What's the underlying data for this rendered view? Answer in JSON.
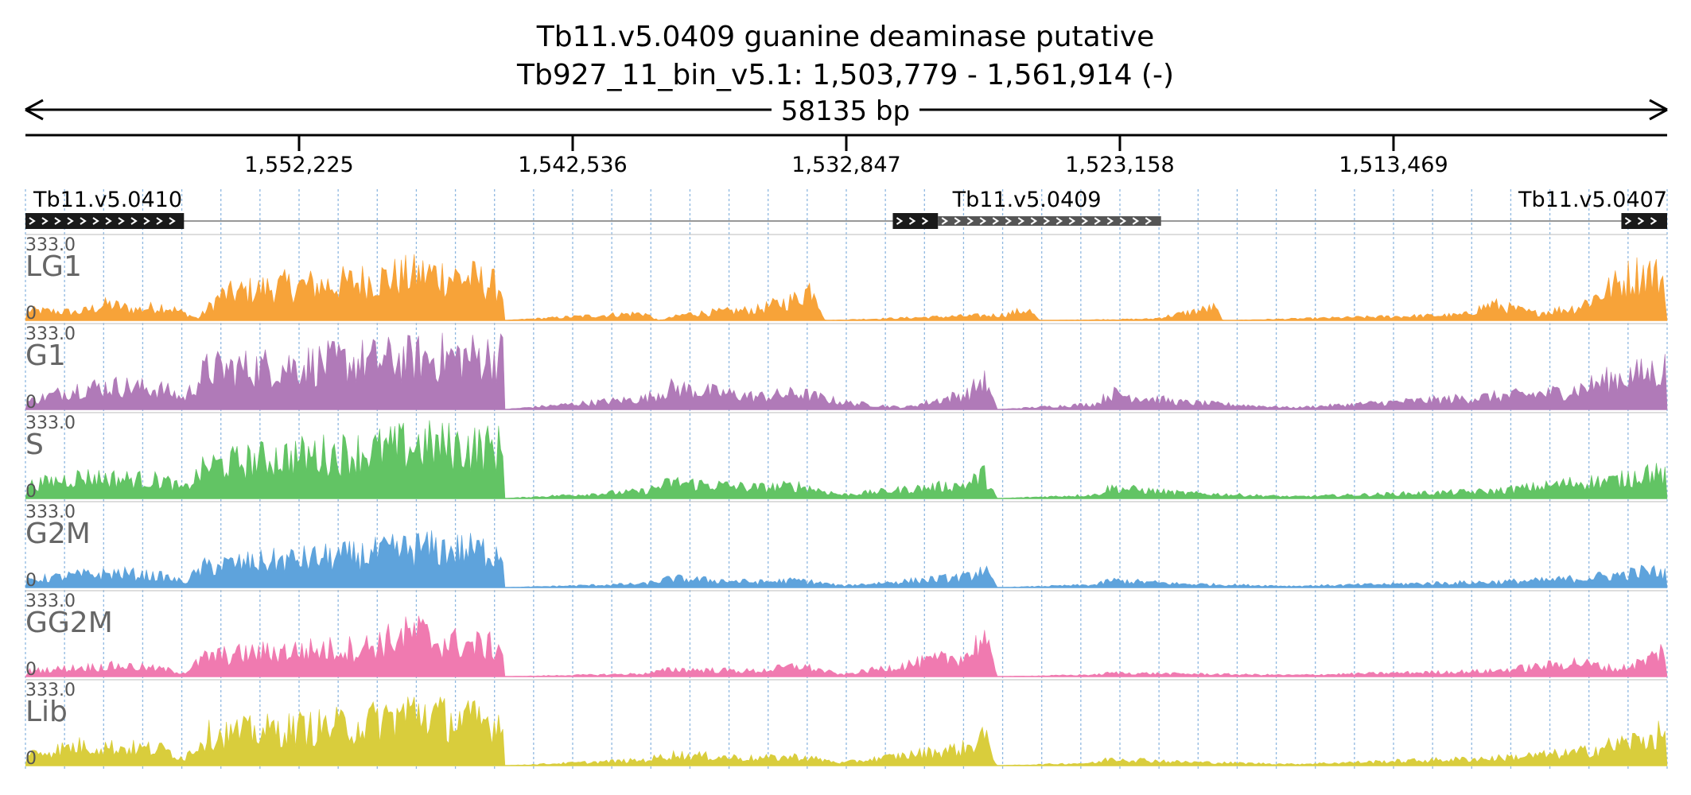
{
  "title": "Tb11.v5.0409  guanine deaminase  putative",
  "subtitle": "Tb927_11_bin_v5.1: 1,503,779 - 1,561,914 (-)",
  "span_label": "58135 bp",
  "colors": {
    "LG1": "#f7a339",
    "G1": "#b07ab8",
    "S": "#62c464",
    "G2M": "#5ea3dc",
    "GG2M": "#f07ab0",
    "Lib": "#d9cd3c",
    "gene_box": "#1a1a1a",
    "gene_box_secondary": "#555555",
    "grid": "#8fb8e0"
  },
  "chart_data": {
    "type": "area",
    "x_range_bp": [
      1561914,
      1503779
    ],
    "x_reversed": true,
    "strand": "-",
    "ylim": [
      0,
      333.0
    ],
    "y_max_label": "333.0",
    "y_min_label": "0",
    "ticks": [
      {
        "value": 1552225,
        "label": "1,552,225"
      },
      {
        "value": 1542536,
        "label": "1,542,536"
      },
      {
        "value": 1532847,
        "label": "1,532,847"
      },
      {
        "value": 1523158,
        "label": "1,523,158"
      },
      {
        "value": 1513469,
        "label": "1,513,469"
      }
    ],
    "genes": [
      {
        "name": "Tb11.v5.0410",
        "start": 1561914,
        "end": 1556300,
        "strand": "+",
        "style": "solid"
      },
      {
        "name": "Tb11.v5.0409",
        "start": 1531200,
        "end": 1521700,
        "strand": "+",
        "style": "split",
        "solid_until": 1529600
      },
      {
        "name": "Tb11.v5.0407",
        "start": 1505400,
        "end": 1503779,
        "strand": "+",
        "style": "solid"
      }
    ],
    "tracks": [
      {
        "name": "LG1",
        "color": "#f7a339",
        "profile": [
          {
            "x": 1561900,
            "y": 55
          },
          {
            "x": 1560000,
            "y": 45
          },
          {
            "x": 1559000,
            "y": 90
          },
          {
            "x": 1558000,
            "y": 60
          },
          {
            "x": 1557000,
            "y": 80
          },
          {
            "x": 1556300,
            "y": 40
          },
          {
            "x": 1555800,
            "y": 10
          },
          {
            "x": 1555000,
            "y": 140
          },
          {
            "x": 1553000,
            "y": 190
          },
          {
            "x": 1551000,
            "y": 200
          },
          {
            "x": 1549000,
            "y": 240
          },
          {
            "x": 1547500,
            "y": 260
          },
          {
            "x": 1546000,
            "y": 230
          },
          {
            "x": 1545000,
            "y": 180
          },
          {
            "x": 1545000,
            "y": 0
          },
          {
            "x": 1540000,
            "y": 40
          },
          {
            "x": 1539500,
            "y": 0
          },
          {
            "x": 1538500,
            "y": 35
          },
          {
            "x": 1536000,
            "y": 60
          },
          {
            "x": 1534600,
            "y": 120
          },
          {
            "x": 1534000,
            "y": 200
          },
          {
            "x": 1533600,
            "y": 0
          },
          {
            "x": 1527300,
            "y": 30
          },
          {
            "x": 1526400,
            "y": 60
          },
          {
            "x": 1526000,
            "y": 0
          },
          {
            "x": 1522000,
            "y": 8
          },
          {
            "x": 1519800,
            "y": 70
          },
          {
            "x": 1519500,
            "y": 0
          },
          {
            "x": 1511000,
            "y": 30
          },
          {
            "x": 1510000,
            "y": 90
          },
          {
            "x": 1508500,
            "y": 40
          },
          {
            "x": 1507000,
            "y": 70
          },
          {
            "x": 1505000,
            "y": 250
          },
          {
            "x": 1504500,
            "y": 270
          },
          {
            "x": 1503800,
            "y": 220
          }
        ]
      },
      {
        "name": "G1",
        "color": "#b07ab8",
        "profile": [
          {
            "x": 1561900,
            "y": 40
          },
          {
            "x": 1560000,
            "y": 120
          },
          {
            "x": 1558500,
            "y": 130
          },
          {
            "x": 1557000,
            "y": 110
          },
          {
            "x": 1556300,
            "y": 60
          },
          {
            "x": 1555500,
            "y": 220
          },
          {
            "x": 1553000,
            "y": 240
          },
          {
            "x": 1550000,
            "y": 270
          },
          {
            "x": 1547500,
            "y": 290
          },
          {
            "x": 1545000,
            "y": 300
          },
          {
            "x": 1545000,
            "y": 0
          },
          {
            "x": 1540000,
            "y": 60
          },
          {
            "x": 1539000,
            "y": 120
          },
          {
            "x": 1536000,
            "y": 70
          },
          {
            "x": 1534500,
            "y": 90
          },
          {
            "x": 1533000,
            "y": 40
          },
          {
            "x": 1530800,
            "y": 10
          },
          {
            "x": 1528500,
            "y": 90
          },
          {
            "x": 1528000,
            "y": 170
          },
          {
            "x": 1527500,
            "y": 0
          },
          {
            "x": 1524000,
            "y": 30
          },
          {
            "x": 1523500,
            "y": 90
          },
          {
            "x": 1521000,
            "y": 40
          },
          {
            "x": 1517000,
            "y": 10
          },
          {
            "x": 1510000,
            "y": 70
          },
          {
            "x": 1508000,
            "y": 90
          },
          {
            "x": 1507000,
            "y": 110
          },
          {
            "x": 1505500,
            "y": 180
          },
          {
            "x": 1504500,
            "y": 200
          },
          {
            "x": 1503800,
            "y": 230
          }
        ]
      },
      {
        "name": "S",
        "color": "#62c464",
        "profile": [
          {
            "x": 1561900,
            "y": 70
          },
          {
            "x": 1560000,
            "y": 120
          },
          {
            "x": 1558500,
            "y": 110
          },
          {
            "x": 1557000,
            "y": 100
          },
          {
            "x": 1556300,
            "y": 50
          },
          {
            "x": 1555500,
            "y": 180
          },
          {
            "x": 1553000,
            "y": 230
          },
          {
            "x": 1550000,
            "y": 260
          },
          {
            "x": 1548000,
            "y": 300
          },
          {
            "x": 1545000,
            "y": 280
          },
          {
            "x": 1545000,
            "y": 0
          },
          {
            "x": 1540000,
            "y": 40
          },
          {
            "x": 1539000,
            "y": 90
          },
          {
            "x": 1536000,
            "y": 60
          },
          {
            "x": 1534500,
            "y": 70
          },
          {
            "x": 1533000,
            "y": 20
          },
          {
            "x": 1528500,
            "y": 80
          },
          {
            "x": 1528000,
            "y": 140
          },
          {
            "x": 1527500,
            "y": 0
          },
          {
            "x": 1524000,
            "y": 20
          },
          {
            "x": 1523500,
            "y": 60
          },
          {
            "x": 1521000,
            "y": 30
          },
          {
            "x": 1517000,
            "y": 10
          },
          {
            "x": 1510000,
            "y": 40
          },
          {
            "x": 1508000,
            "y": 70
          },
          {
            "x": 1507000,
            "y": 90
          },
          {
            "x": 1505500,
            "y": 100
          },
          {
            "x": 1504500,
            "y": 150
          },
          {
            "x": 1503800,
            "y": 120
          }
        ]
      },
      {
        "name": "G2M",
        "color": "#5ea3dc",
        "profile": [
          {
            "x": 1561900,
            "y": 40
          },
          {
            "x": 1560000,
            "y": 70
          },
          {
            "x": 1558500,
            "y": 80
          },
          {
            "x": 1557000,
            "y": 60
          },
          {
            "x": 1556300,
            "y": 30
          },
          {
            "x": 1555500,
            "y": 120
          },
          {
            "x": 1553000,
            "y": 150
          },
          {
            "x": 1550000,
            "y": 180
          },
          {
            "x": 1548000,
            "y": 220
          },
          {
            "x": 1545000,
            "y": 200
          },
          {
            "x": 1545000,
            "y": 0
          },
          {
            "x": 1540000,
            "y": 20
          },
          {
            "x": 1539000,
            "y": 50
          },
          {
            "x": 1536000,
            "y": 30
          },
          {
            "x": 1534500,
            "y": 40
          },
          {
            "x": 1533000,
            "y": 10
          },
          {
            "x": 1528500,
            "y": 60
          },
          {
            "x": 1528000,
            "y": 110
          },
          {
            "x": 1527500,
            "y": 0
          },
          {
            "x": 1524000,
            "y": 15
          },
          {
            "x": 1523500,
            "y": 40
          },
          {
            "x": 1521000,
            "y": 20
          },
          {
            "x": 1517000,
            "y": 8
          },
          {
            "x": 1510000,
            "y": 30
          },
          {
            "x": 1508000,
            "y": 40
          },
          {
            "x": 1507000,
            "y": 50
          },
          {
            "x": 1505500,
            "y": 70
          },
          {
            "x": 1504500,
            "y": 90
          },
          {
            "x": 1503800,
            "y": 80
          }
        ]
      },
      {
        "name": "GG2M",
        "color": "#f07ab0",
        "profile": [
          {
            "x": 1561900,
            "y": 30
          },
          {
            "x": 1560000,
            "y": 50
          },
          {
            "x": 1558500,
            "y": 60
          },
          {
            "x": 1557000,
            "y": 40
          },
          {
            "x": 1556300,
            "y": 20
          },
          {
            "x": 1555500,
            "y": 110
          },
          {
            "x": 1553000,
            "y": 140
          },
          {
            "x": 1550000,
            "y": 160
          },
          {
            "x": 1548000,
            "y": 250
          },
          {
            "x": 1547500,
            "y": 200
          },
          {
            "x": 1545000,
            "y": 160
          },
          {
            "x": 1545000,
            "y": 0
          },
          {
            "x": 1540000,
            "y": 15
          },
          {
            "x": 1539000,
            "y": 40
          },
          {
            "x": 1536000,
            "y": 30
          },
          {
            "x": 1534500,
            "y": 60
          },
          {
            "x": 1533000,
            "y": 10
          },
          {
            "x": 1528500,
            "y": 120
          },
          {
            "x": 1528000,
            "y": 230
          },
          {
            "x": 1527500,
            "y": 0
          },
          {
            "x": 1524000,
            "y": 10
          },
          {
            "x": 1523500,
            "y": 20
          },
          {
            "x": 1521000,
            "y": 15
          },
          {
            "x": 1517000,
            "y": 8
          },
          {
            "x": 1510000,
            "y": 30
          },
          {
            "x": 1508000,
            "y": 60
          },
          {
            "x": 1507000,
            "y": 80
          },
          {
            "x": 1505500,
            "y": 40
          },
          {
            "x": 1504500,
            "y": 90
          },
          {
            "x": 1503800,
            "y": 160
          }
        ]
      },
      {
        "name": "Lib",
        "color": "#d9cd3c",
        "profile": [
          {
            "x": 1561900,
            "y": 60
          },
          {
            "x": 1560000,
            "y": 110
          },
          {
            "x": 1558500,
            "y": 100
          },
          {
            "x": 1557000,
            "y": 90
          },
          {
            "x": 1556300,
            "y": 40
          },
          {
            "x": 1555500,
            "y": 170
          },
          {
            "x": 1553000,
            "y": 200
          },
          {
            "x": 1550000,
            "y": 230
          },
          {
            "x": 1548000,
            "y": 310
          },
          {
            "x": 1547000,
            "y": 260
          },
          {
            "x": 1545000,
            "y": 240
          },
          {
            "x": 1545000,
            "y": 0
          },
          {
            "x": 1540000,
            "y": 30
          },
          {
            "x": 1539000,
            "y": 60
          },
          {
            "x": 1536000,
            "y": 40
          },
          {
            "x": 1534500,
            "y": 50
          },
          {
            "x": 1533000,
            "y": 15
          },
          {
            "x": 1528500,
            "y": 100
          },
          {
            "x": 1528000,
            "y": 180
          },
          {
            "x": 1527500,
            "y": 0
          },
          {
            "x": 1524000,
            "y": 15
          },
          {
            "x": 1523500,
            "y": 40
          },
          {
            "x": 1521000,
            "y": 20
          },
          {
            "x": 1517000,
            "y": 8
          },
          {
            "x": 1510000,
            "y": 40
          },
          {
            "x": 1508000,
            "y": 60
          },
          {
            "x": 1507000,
            "y": 70
          },
          {
            "x": 1505500,
            "y": 120
          },
          {
            "x": 1504500,
            "y": 150
          },
          {
            "x": 1503800,
            "y": 180
          }
        ]
      }
    ]
  }
}
